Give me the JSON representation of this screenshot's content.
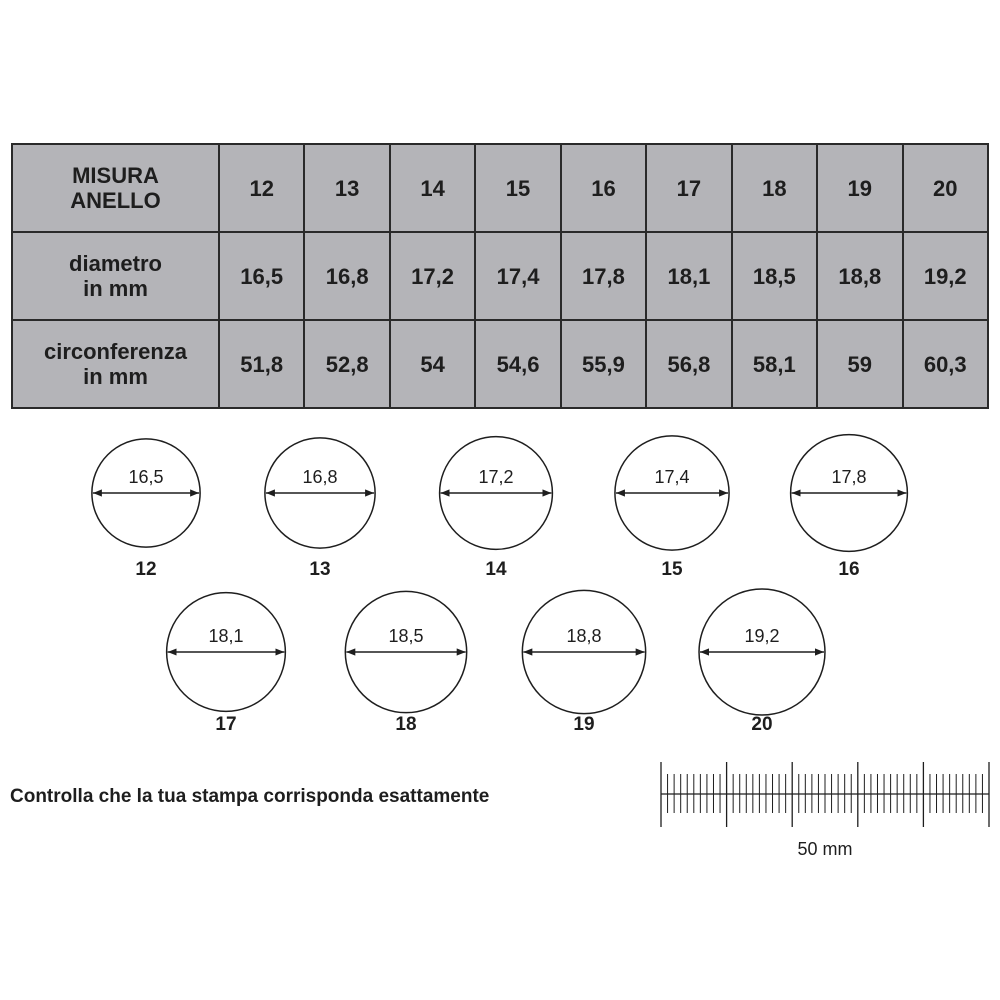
{
  "table": {
    "rows": [
      {
        "label": [
          "MISURA",
          "ANELLO"
        ],
        "values": [
          "12",
          "13",
          "14",
          "15",
          "16",
          "17",
          "18",
          "19",
          "20"
        ]
      },
      {
        "label": [
          "diametro",
          "in mm"
        ],
        "values": [
          "16,5",
          "16,8",
          "17,2",
          "17,4",
          "17,8",
          "18,1",
          "18,5",
          "18,8",
          "19,2"
        ]
      },
      {
        "label": [
          "circonferenza",
          "in mm"
        ],
        "values": [
          "51,8",
          "52,8",
          "54",
          "54,6",
          "55,9",
          "56,8",
          "58,1",
          "59",
          "60,3"
        ]
      }
    ]
  },
  "circles": [
    {
      "size": "12",
      "diameter": "16,5"
    },
    {
      "size": "13",
      "diameter": "16,8"
    },
    {
      "size": "14",
      "diameter": "17,2"
    },
    {
      "size": "15",
      "diameter": "17,4"
    },
    {
      "size": "16",
      "diameter": "17,8"
    },
    {
      "size": "17",
      "diameter": "18,1"
    },
    {
      "size": "18",
      "diameter": "18,5"
    },
    {
      "size": "19",
      "diameter": "18,8"
    },
    {
      "size": "20",
      "diameter": "19,2"
    }
  ],
  "caption": "Controlla che la tua stampa corrisponda esattamente",
  "ruler": {
    "length_mm": 50,
    "label": "50 mm"
  },
  "colors": {
    "table_bg": "#b4b4b8",
    "ink": "#1e1e1e"
  }
}
